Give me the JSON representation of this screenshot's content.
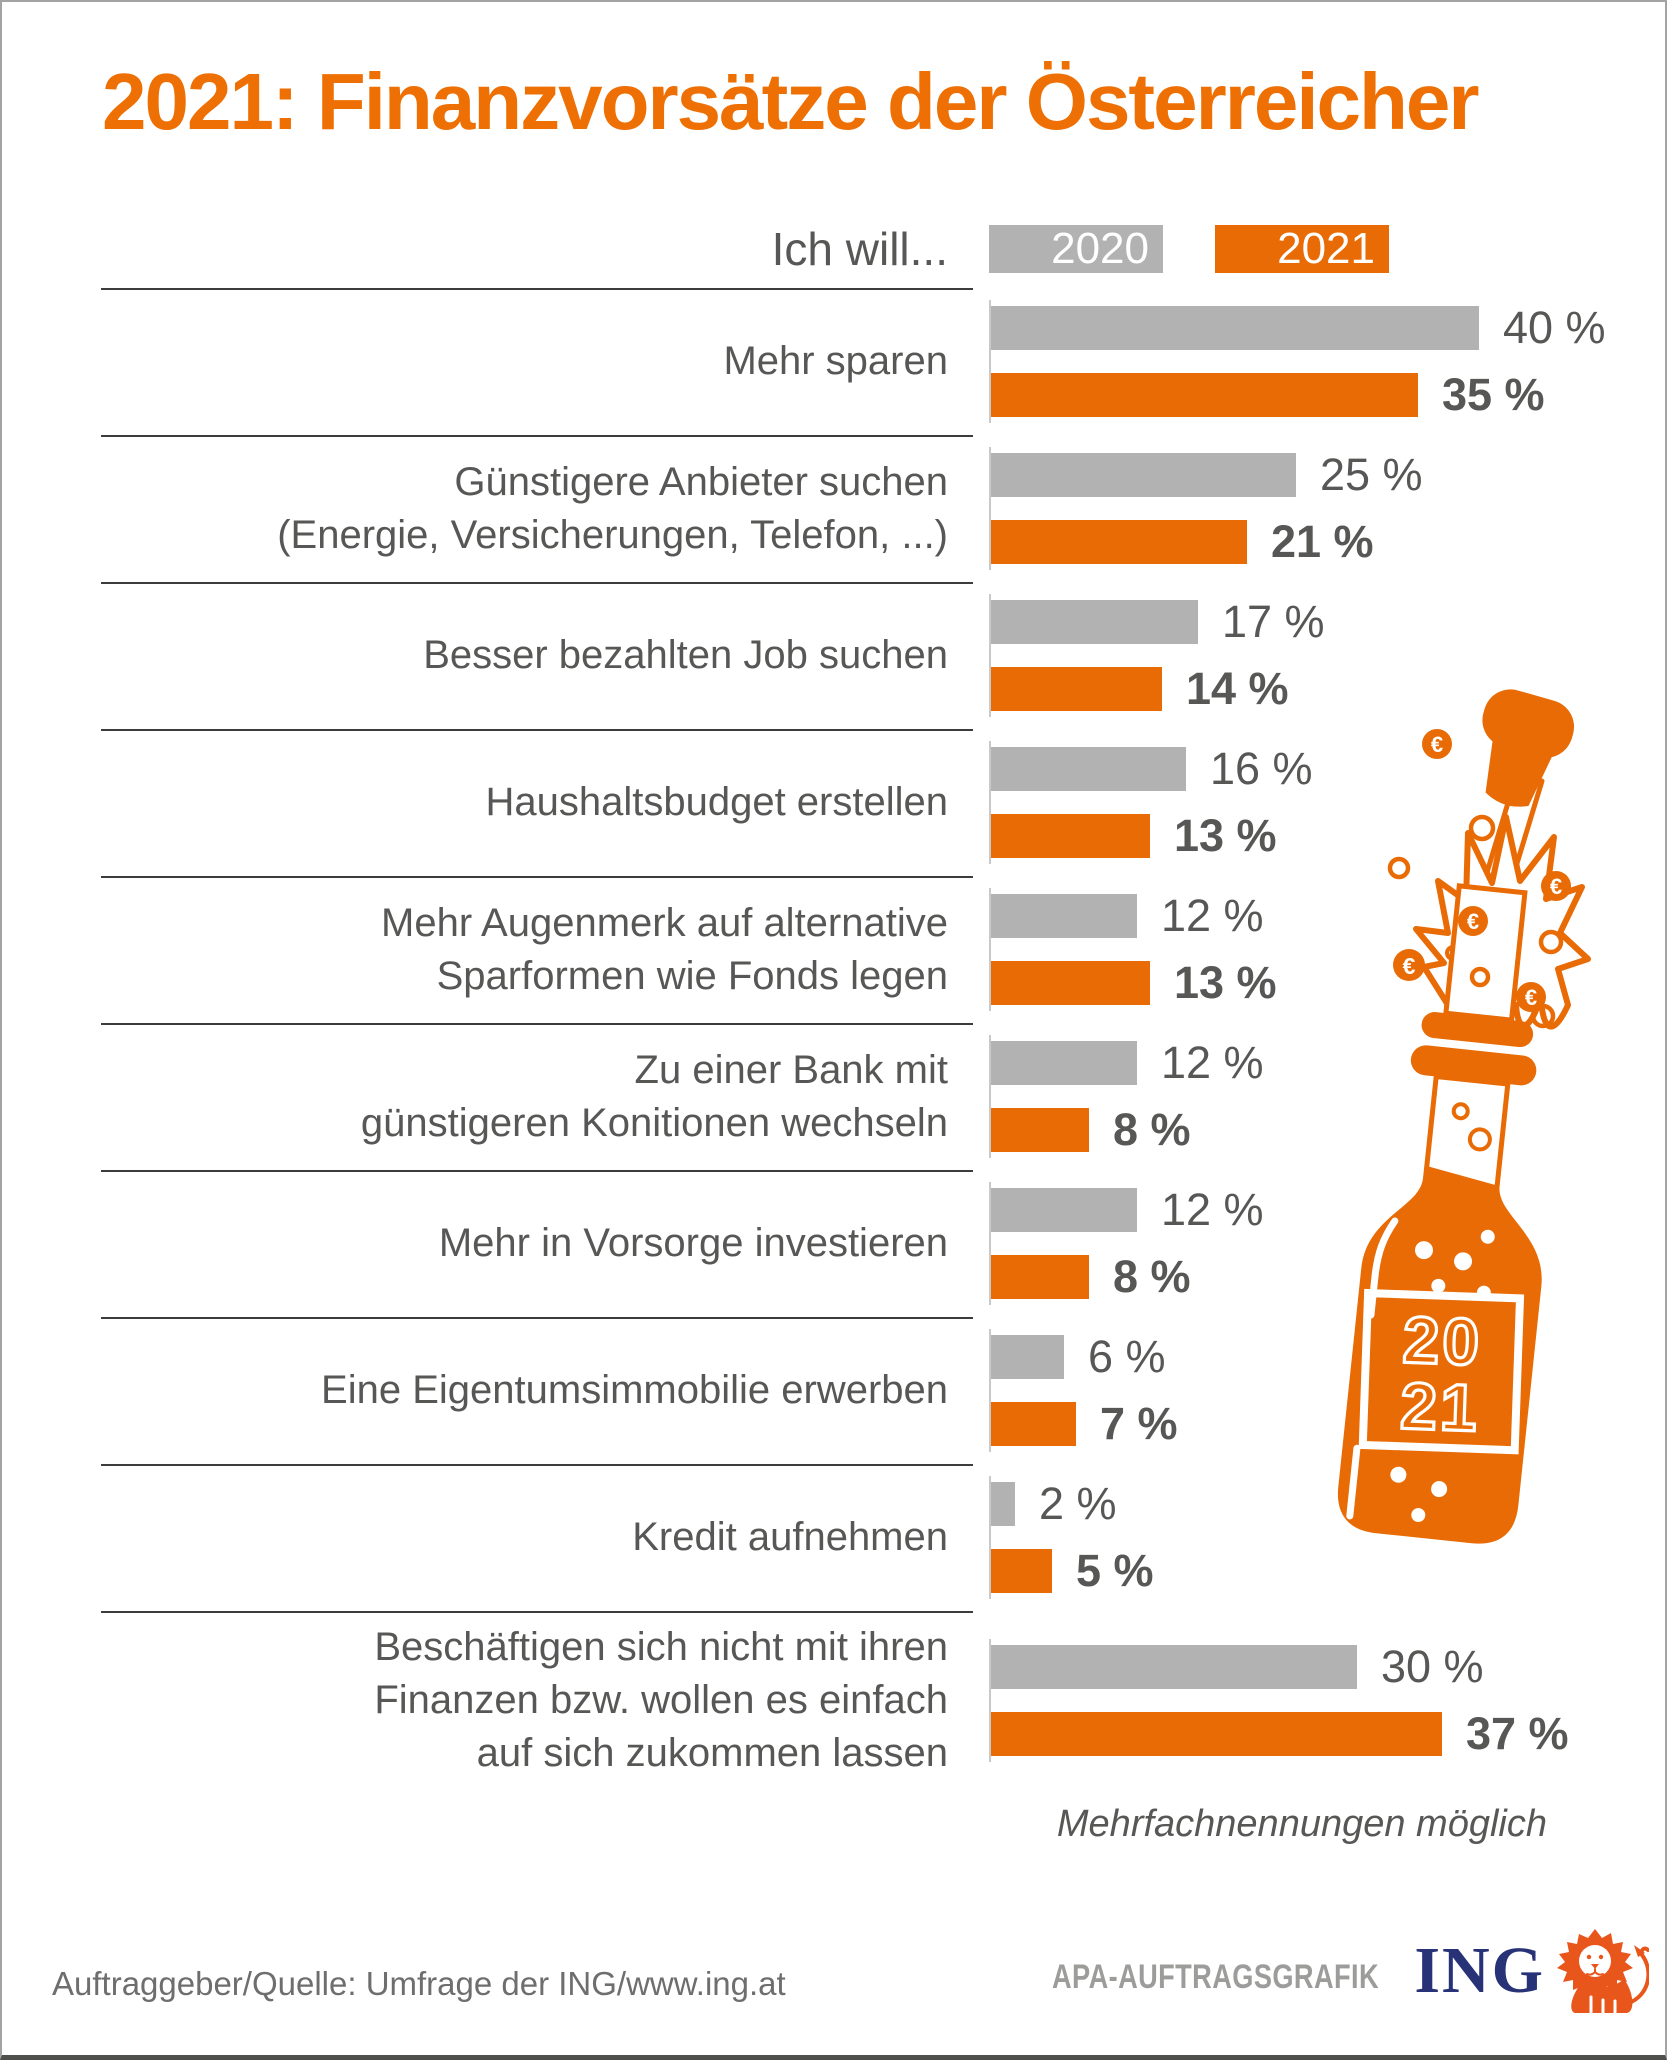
{
  "title": "2021: Finanzvorsätze der Österreicher",
  "legend": {
    "prompt": "Ich will...",
    "label_2020": "2020",
    "label_2021": "2021"
  },
  "note": "Mehrfachnennungen möglich",
  "footer": {
    "source": "Auftraggeber/Quelle: Umfrage der ING/www.ing.at",
    "credit": "APA-AUFTRAGSGRAFIK",
    "logo_text": "ING"
  },
  "bottle": {
    "label_line1": "20",
    "label_line2": "21",
    "euro_symbol": "€"
  },
  "colors": {
    "title_orange": "#EE7004",
    "bar_2020_gray": "#B2B2B2",
    "bar_2021_orange": "#E96B05",
    "text_gray": "#575756",
    "footer_gray": "#6F6E6E",
    "credit_gray": "#9C9C9B",
    "ing_navy": "#283377",
    "lion_orange": "#E9561C"
  },
  "chart_data": {
    "type": "bar",
    "orientation": "horizontal",
    "title": "2021: Finanzvorsätze der Österreicher",
    "legend_position": "top",
    "grid": false,
    "xlim": [
      0,
      40
    ],
    "series": [
      {
        "name": "2020",
        "color": "#B2B2B2"
      },
      {
        "name": "2021",
        "color": "#E96B05"
      }
    ],
    "categories": [
      "Mehr sparen",
      "Günstigere Anbieter suchen (Energie, Versicherungen, Telefon, ...)",
      "Besser bezahlten Job suchen",
      "Haushaltsbudget erstellen",
      "Mehr Augenmerk auf alternative Sparformen wie Fonds legen",
      "Zu einer Bank mit günstigeren Konitionen wechseln",
      "Mehr in Vorsorge investieren",
      "Eine Eigentumsimmobilie erwerben",
      "Kredit aufnehmen",
      "Beschäftigen sich nicht mit ihren Finanzen bzw. wollen es einfach auf sich zukommen lassen"
    ],
    "rows": [
      {
        "label": "Mehr sparen",
        "v2020": 40,
        "v2021": 35,
        "d2020": "40 %",
        "d2021": "35 %"
      },
      {
        "label": "Günstigere Anbieter suchen\n(Energie, Versicherungen, Telefon, ...)",
        "v2020": 25,
        "v2021": 21,
        "d2020": "25 %",
        "d2021": "21 %"
      },
      {
        "label": "Besser bezahlten Job suchen",
        "v2020": 17,
        "v2021": 14,
        "d2020": "17 %",
        "d2021": "14 %"
      },
      {
        "label": "Haushaltsbudget erstellen",
        "v2020": 16,
        "v2021": 13,
        "d2020": "16 %",
        "d2021": "13 %"
      },
      {
        "label": "Mehr Augenmerk auf alternative\nSparformen wie Fonds legen",
        "v2020": 12,
        "v2021": 13,
        "d2020": "12 %",
        "d2021": "13 %"
      },
      {
        "label": "Zu einer Bank mit\ngünstigeren Konitionen wechseln",
        "v2020": 12,
        "v2021": 8,
        "d2020": "12 %",
        "d2021": "8 %"
      },
      {
        "label": "Mehr in Vorsorge investieren",
        "v2020": 12,
        "v2021": 8,
        "d2020": "12 %",
        "d2021": "8 %"
      },
      {
        "label": "Eine Eigentumsimmobilie erwerben",
        "v2020": 6,
        "v2021": 7,
        "d2020": "6 %",
        "d2021": "7 %"
      },
      {
        "label": "Kredit aufnehmen",
        "v2020": 2,
        "v2021": 5,
        "d2020": "2 %",
        "d2021": "5 %"
      },
      {
        "label": "Beschäftigen sich nicht mit ihren\nFinanzen bzw. wollen es einfach\nauf sich zukommen lassen",
        "v2020": 30,
        "v2021": 37,
        "d2020": "30 %",
        "d2021": "37 %"
      }
    ]
  }
}
